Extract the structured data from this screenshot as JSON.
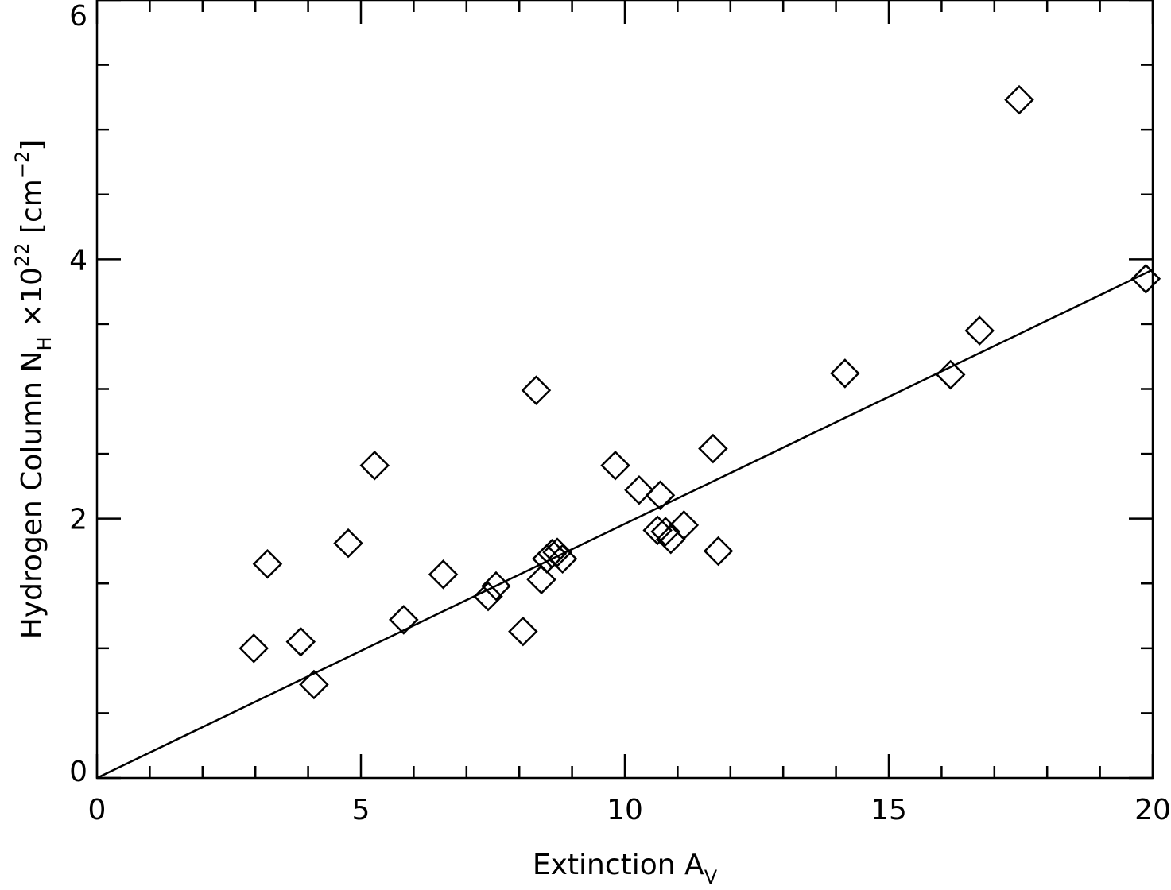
{
  "chart_data": {
    "type": "scatter",
    "xlabel": {
      "main": "Extinction A",
      "sub": "V"
    },
    "ylabel": {
      "part1": "Hydrogen Column N",
      "sub": "H",
      "part2": " ×10",
      "exp": "22",
      "part3": " [cm",
      "exp2": "−2",
      "part4": "]"
    },
    "xlim": [
      0,
      20
    ],
    "ylim": [
      0,
      6
    ],
    "x_ticks": [
      {
        "value": 0,
        "label": "0"
      },
      {
        "value": 5,
        "label": "5"
      },
      {
        "value": 10,
        "label": "10"
      },
      {
        "value": 15,
        "label": "15"
      },
      {
        "value": 20,
        "label": "20"
      }
    ],
    "y_ticks": [
      {
        "value": 0,
        "label": "0"
      },
      {
        "value": 2,
        "label": "2"
      },
      {
        "value": 4,
        "label": "4"
      },
      {
        "value": 6,
        "label": "6"
      }
    ],
    "x_minor_step": 1,
    "y_minor_step": 0.5,
    "grid": false,
    "marker": "diamond",
    "points": [
      {
        "x": 2.97,
        "y": 1.0
      },
      {
        "x": 3.23,
        "y": 1.65
      },
      {
        "x": 3.86,
        "y": 1.05
      },
      {
        "x": 4.11,
        "y": 0.72
      },
      {
        "x": 4.76,
        "y": 1.81
      },
      {
        "x": 5.26,
        "y": 2.41
      },
      {
        "x": 5.81,
        "y": 1.22
      },
      {
        "x": 6.56,
        "y": 1.57
      },
      {
        "x": 7.41,
        "y": 1.4
      },
      {
        "x": 7.56,
        "y": 1.48
      },
      {
        "x": 8.07,
        "y": 1.13
      },
      {
        "x": 8.32,
        "y": 2.99
      },
      {
        "x": 8.42,
        "y": 1.53
      },
      {
        "x": 8.52,
        "y": 1.69
      },
      {
        "x": 8.62,
        "y": 1.73
      },
      {
        "x": 8.72,
        "y": 1.74
      },
      {
        "x": 8.82,
        "y": 1.69
      },
      {
        "x": 9.82,
        "y": 2.41
      },
      {
        "x": 10.27,
        "y": 2.22
      },
      {
        "x": 10.62,
        "y": 1.91
      },
      {
        "x": 10.67,
        "y": 2.18
      },
      {
        "x": 10.77,
        "y": 1.9
      },
      {
        "x": 10.87,
        "y": 1.84
      },
      {
        "x": 11.12,
        "y": 1.95
      },
      {
        "x": 11.67,
        "y": 2.54
      },
      {
        "x": 11.77,
        "y": 1.75
      },
      {
        "x": 14.17,
        "y": 3.12
      },
      {
        "x": 16.17,
        "y": 3.11
      },
      {
        "x": 16.72,
        "y": 3.45
      },
      {
        "x": 17.47,
        "y": 5.23
      },
      {
        "x": 19.87,
        "y": 3.85
      }
    ],
    "fit_line": {
      "x": [
        0,
        20
      ],
      "y": [
        0,
        3.92
      ]
    }
  }
}
